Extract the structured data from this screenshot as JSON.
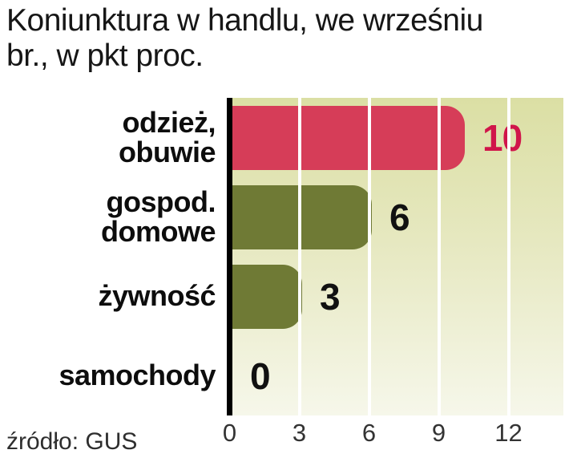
{
  "title": "Koniunktura w handlu, we wrześniu\nbr., w pkt proc.",
  "source": "źródło: GUS",
  "chart_data": {
    "type": "bar",
    "orientation": "horizontal",
    "title": "Koniunktura w handlu, we wrześniu br., w pkt proc.",
    "source": "źródło: GUS",
    "categories": [
      "odzież,\nobuwie",
      "gospod.\ndomowe",
      "żywność",
      "samochody"
    ],
    "values": [
      10,
      6,
      3,
      0
    ],
    "bar_colors": [
      "#d63d58",
      "#6f7a35",
      "#6f7a35",
      "#6f7a35"
    ],
    "value_label_colors": [
      "#d0154a",
      "#111111",
      "#111111",
      "#111111"
    ],
    "x_ticks": [
      0,
      3,
      6,
      9,
      12
    ],
    "xlim": [
      0,
      12
    ],
    "gridlines": [
      3,
      6,
      9,
      12
    ],
    "grid": true,
    "legend": false,
    "background_gradient": [
      "#dbdfa4",
      "#f6f7ea"
    ],
    "axis_color": "#000000"
  }
}
